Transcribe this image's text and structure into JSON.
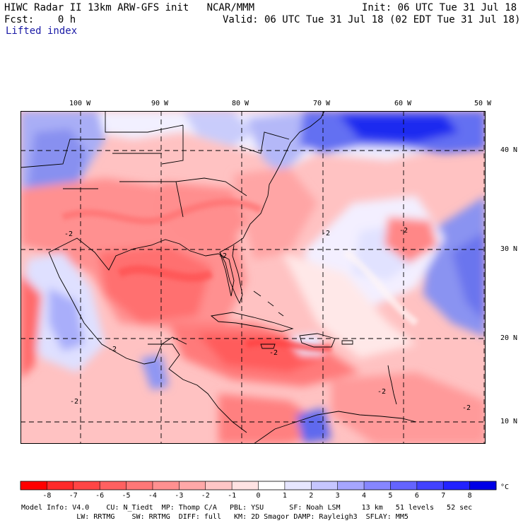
{
  "header": {
    "line1_left": "HIWC Radar II 13km ARW-GFS init   NCAR/MMM",
    "line1_right": "Init: 06 UTC Tue 31 Jul 18",
    "line2_left": "Fcst:    0 h",
    "line2_right": "Valid: 06 UTC Tue 31 Jul 18 (02 EDT Tue 31 Jul 18)",
    "field": "Lifted index"
  },
  "longitude_labels": [
    "100 W",
    "90 W",
    "80 W",
    "70 W",
    "60 W",
    "50 W"
  ],
  "latitude_labels": [
    "40 N",
    "30 N",
    "20 N",
    "10 N"
  ],
  "contour_labels": [
    "-2",
    "-2",
    "-2",
    "-2",
    "-2",
    "-2",
    "-2",
    "-2",
    "-2"
  ],
  "colorbar": {
    "ticks": [
      "-8",
      "-7",
      "-6",
      "-5",
      "-4",
      "-3",
      "-2",
      "-1",
      "0",
      "1",
      "2",
      "3",
      "4",
      "5",
      "6",
      "7",
      "8"
    ],
    "unit": "°C",
    "colors": [
      "#ff0000",
      "#ff2a2a",
      "#ff4545",
      "#ff6060",
      "#ff7777",
      "#ff9090",
      "#ffa8a8",
      "#ffc6c6",
      "#ffe3e3",
      "#ffffff",
      "#e6e6ff",
      "#c6c6ff",
      "#a6a6ff",
      "#8686ff",
      "#6464ff",
      "#4242ff",
      "#2222ff",
      "#0000e6"
    ]
  },
  "footer": {
    "line1": "Model Info: V4.0    CU: N_Tiedt  MP: Thomp C/A   PBL: YSU      SF: Noah LSM     13 km   51 levels   52 sec",
    "line2": "             LW: RRTMG    SW: RRTMG  DIFF: full   KM: 2D Smagor DAMP: Rayleigh3  SFLAY: MM5"
  }
}
